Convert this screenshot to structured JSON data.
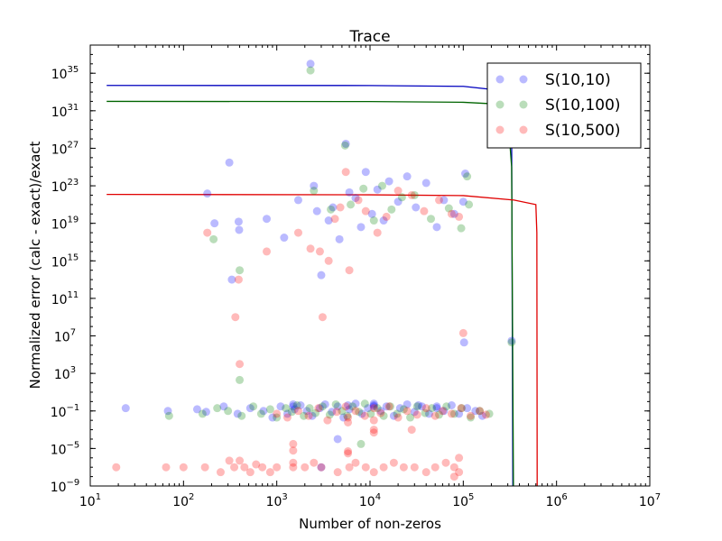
{
  "chart_data": {
    "type": "scatter",
    "title": "Trace",
    "xlabel": "Number of non-zeros",
    "ylabel": "Normalized error (calc - exact)/exact",
    "xscale": "log",
    "yscale": "log",
    "xlim": [
      10,
      10000000
    ],
    "ylim": [
      1e-09,
      1e+38
    ],
    "x_ticks": [
      {
        "value": 10,
        "base": "10",
        "exp": "1"
      },
      {
        "value": 100,
        "base": "10",
        "exp": "2"
      },
      {
        "value": 1000,
        "base": "10",
        "exp": "3"
      },
      {
        "value": 10000,
        "base": "10",
        "exp": "4"
      },
      {
        "value": 100000,
        "base": "10",
        "exp": "5"
      },
      {
        "value": 1000000,
        "base": "10",
        "exp": "6"
      },
      {
        "value": 10000000,
        "base": "10",
        "exp": "7"
      }
    ],
    "y_ticks": [
      {
        "value": 1e-09,
        "base": "10",
        "exp": "−9"
      },
      {
        "value": 1e-05,
        "base": "10",
        "exp": "−5"
      },
      {
        "value": 0.1,
        "base": "10",
        "exp": "−1"
      },
      {
        "value": 1000.0,
        "base": "10",
        "exp": "3"
      },
      {
        "value": 10000000.0,
        "base": "10",
        "exp": "7"
      },
      {
        "value": 100000000000.0,
        "base": "10",
        "exp": "11"
      },
      {
        "value": 1000000000000000.0,
        "base": "10",
        "exp": "15"
      },
      {
        "value": 1e+19,
        "base": "10",
        "exp": "19"
      },
      {
        "value": 1e+23,
        "base": "10",
        "exp": "23"
      },
      {
        "value": 1e+27,
        "base": "10",
        "exp": "27"
      },
      {
        "value": 1e+31,
        "base": "10",
        "exp": "31"
      },
      {
        "value": 1e+35,
        "base": "10",
        "exp": "35"
      }
    ],
    "legend_position": "top-right",
    "series": [
      {
        "name": "S(10,10)",
        "color": "#0000ff",
        "marker": "circle",
        "points": [
          [
            24,
            0.2
          ],
          [
            68,
            0.1
          ],
          [
            140,
            0.15
          ],
          [
            175,
            0.08
          ],
          [
            270,
            0.3
          ],
          [
            380,
            0.05
          ],
          [
            520,
            0.2
          ],
          [
            720,
            0.1
          ],
          [
            900,
            0.02
          ],
          [
            1100,
            0.3
          ],
          [
            1300,
            0.05
          ],
          [
            1550,
            0.15
          ],
          [
            1800,
            0.4
          ],
          [
            2100,
            0.1
          ],
          [
            2400,
            0.03
          ],
          [
            2900,
            0.2
          ],
          [
            3300,
            0.5
          ],
          [
            3900,
            0.08
          ],
          [
            4500,
            0.3
          ],
          [
            5200,
            0.02
          ],
          [
            6000,
            0.15
          ],
          [
            7000,
            0.6
          ],
          [
            8200,
            0.05
          ],
          [
            9500,
            0.2
          ],
          [
            11000,
            0.4
          ],
          [
            13000,
            0.1
          ],
          [
            15000,
            0.3
          ],
          [
            18000,
            0.03
          ],
          [
            21000,
            0.2
          ],
          [
            25000,
            0.5
          ],
          [
            30000,
            0.08
          ],
          [
            36000,
            0.3
          ],
          [
            43000,
            0.05
          ],
          [
            52000,
            0.2
          ],
          [
            62000,
            0.1
          ],
          [
            75000,
            0.4
          ],
          [
            90000,
            0.05
          ],
          [
            110000,
            0.2
          ],
          [
            135000,
            0.1
          ],
          [
            160000,
            0.03
          ],
          [
            1500,
            0.5
          ],
          [
            1500,
            0.3
          ],
          [
            5800,
            0.4
          ],
          [
            11000,
            0.6
          ],
          [
            11000,
            0.3
          ],
          [
            33000,
            0.4
          ],
          [
            52000,
            0.3
          ],
          [
            180,
            1.5e+22
          ],
          [
            215,
            1e+19
          ],
          [
            310,
            3e+25
          ],
          [
            330,
            10000000000000.0
          ],
          [
            390,
            1.5e+19
          ],
          [
            395,
            2e+18
          ],
          [
            780,
            3e+19
          ],
          [
            1200,
            3e+17
          ],
          [
            1700,
            3e+21
          ],
          [
            2300,
            1e+36
          ],
          [
            2500,
            1e+23
          ],
          [
            2700,
            2e+20
          ],
          [
            3000,
            30000000000000.0
          ],
          [
            3600,
            2e+19
          ],
          [
            4000,
            5e+20
          ],
          [
            4700,
            2e+17
          ],
          [
            5500,
            3e+27
          ],
          [
            6000,
            2e+22
          ],
          [
            7000,
            5e+21
          ],
          [
            8000,
            4e+18
          ],
          [
            9000,
            3e+24
          ],
          [
            10500,
            1e+20
          ],
          [
            12000,
            4e+22
          ],
          [
            14000,
            2e+19
          ],
          [
            16000,
            3e+23
          ],
          [
            20000,
            2e+21
          ],
          [
            25000,
            1e+24
          ],
          [
            31000,
            5e+20
          ],
          [
            40000,
            2e+23
          ],
          [
            52000,
            4e+18
          ],
          [
            62000,
            3e+21
          ],
          [
            80000,
            1e+20
          ],
          [
            100000,
            2e+21
          ],
          [
            105000,
            2e+24
          ],
          [
            102000,
            2000000.0
          ],
          [
            330000,
            3000000.0
          ],
          [
            4500,
            0.0001
          ],
          [
            3000,
            1e-07
          ]
        ]
      },
      {
        "name": "S(10,100)",
        "color": "#008000",
        "marker": "circle",
        "points": [
          [
            70,
            0.03
          ],
          [
            160,
            0.05
          ],
          [
            230,
            0.2
          ],
          [
            300,
            0.1
          ],
          [
            420,
            0.03
          ],
          [
            560,
            0.3
          ],
          [
            680,
            0.05
          ],
          [
            850,
            0.15
          ],
          [
            1000,
            0.02
          ],
          [
            1250,
            0.2
          ],
          [
            1450,
            0.08
          ],
          [
            1650,
            0.4
          ],
          [
            1950,
            0.03
          ],
          [
            2250,
            0.2
          ],
          [
            2600,
            0.06
          ],
          [
            3100,
            0.3
          ],
          [
            3700,
            0.04
          ],
          [
            4300,
            0.5
          ],
          [
            5000,
            0.1
          ],
          [
            5700,
            0.03
          ],
          [
            6500,
            0.3
          ],
          [
            7600,
            0.08
          ],
          [
            8800,
            0.6
          ],
          [
            10200,
            0.05
          ],
          [
            12000,
            0.2
          ],
          [
            14000,
            0.03
          ],
          [
            16500,
            0.3
          ],
          [
            19500,
            0.05
          ],
          [
            23000,
            0.15
          ],
          [
            27000,
            0.02
          ],
          [
            32000,
            0.3
          ],
          [
            39000,
            0.06
          ],
          [
            46000,
            0.2
          ],
          [
            55000,
            0.04
          ],
          [
            66000,
            0.3
          ],
          [
            80000,
            0.05
          ],
          [
            96000,
            0.2
          ],
          [
            120000,
            0.02
          ],
          [
            150000,
            0.1
          ],
          [
            190000,
            0.05
          ],
          [
            210,
            2e+17
          ],
          [
            400,
            100000000000000.0
          ],
          [
            2300,
            2e+35
          ],
          [
            2500,
            3e+22
          ],
          [
            3800,
            3e+20
          ],
          [
            5400,
            2e+27
          ],
          [
            6200,
            1e+21
          ],
          [
            8500,
            5e+22
          ],
          [
            11000,
            2e+19
          ],
          [
            13500,
            1e+23
          ],
          [
            17000,
            3e+20
          ],
          [
            22000,
            6e+21
          ],
          [
            30000,
            1e+22
          ],
          [
            45000,
            3e+19
          ],
          [
            70000,
            4e+20
          ],
          [
            95000,
            3e+18
          ],
          [
            110000,
            1e+24
          ],
          [
            115000,
            1e+21
          ],
          [
            330000,
            2000000.0
          ],
          [
            400,
            200.0
          ],
          [
            8000,
            3e-05
          ]
        ]
      },
      {
        "name": "S(10,500)",
        "color": "#ff0000",
        "marker": "circle",
        "points": [
          [
            19,
            1e-07
          ],
          [
            65,
            1e-07
          ],
          [
            100,
            1e-07
          ],
          [
            170,
            1e-07
          ],
          [
            250,
            3e-08
          ],
          [
            310,
            5e-07
          ],
          [
            350,
            1e-07
          ],
          [
            400,
            5e-07
          ],
          [
            450,
            1e-07
          ],
          [
            520,
            3e-08
          ],
          [
            600,
            2e-07
          ],
          [
            700,
            1e-07
          ],
          [
            850,
            3e-08
          ],
          [
            1000,
            1e-07
          ],
          [
            1500,
            1e-07
          ],
          [
            1500,
            3e-07
          ],
          [
            2000,
            1e-07
          ],
          [
            2500,
            3e-07
          ],
          [
            3000,
            1e-07
          ],
          [
            4500,
            3e-08
          ],
          [
            6000,
            1e-07
          ],
          [
            7000,
            3e-07
          ],
          [
            9000,
            1e-07
          ],
          [
            11000,
            3e-08
          ],
          [
            14000,
            1e-07
          ],
          [
            18000,
            3e-07
          ],
          [
            23000,
            1e-07
          ],
          [
            30000,
            1e-07
          ],
          [
            40000,
            3e-08
          ],
          [
            50000,
            1e-07
          ],
          [
            65000,
            3e-07
          ],
          [
            80000,
            1e-07
          ],
          [
            90000,
            3e-08
          ],
          [
            1500,
            3e-05
          ],
          [
            1500,
            6e-06
          ],
          [
            5800,
            3e-06
          ],
          [
            5800,
            5e-06
          ],
          [
            11000,
            0.001
          ],
          [
            11000,
            0.0005
          ],
          [
            1000,
            0.05
          ],
          [
            1300,
            0.02
          ],
          [
            1700,
            0.1
          ],
          [
            2200,
            0.03
          ],
          [
            2800,
            0.2
          ],
          [
            3500,
            0.01
          ],
          [
            4400,
            0.08
          ],
          [
            5500,
            0.3
          ],
          [
            5800,
            0.02
          ],
          [
            5800,
            0.006
          ],
          [
            7000,
            0.1
          ],
          [
            8800,
            0.03
          ],
          [
            11000,
            0.2
          ],
          [
            11000,
            0.01
          ],
          [
            13000,
            0.06
          ],
          [
            16000,
            0.3
          ],
          [
            20000,
            0.02
          ],
          [
            25000,
            0.1
          ],
          [
            32000,
            0.04
          ],
          [
            40000,
            0.2
          ],
          [
            50000,
            0.03
          ],
          [
            60000,
            0.1
          ],
          [
            75000,
            0.05
          ],
          [
            95000,
            0.2
          ],
          [
            120000,
            0.03
          ],
          [
            150000,
            0.1
          ],
          [
            175000,
            0.04
          ],
          [
            180,
            1e+18
          ],
          [
            390,
            10000000000000.0
          ],
          [
            360,
            1000000000.0
          ],
          [
            780,
            1e+16
          ],
          [
            1700,
            1e+18
          ],
          [
            2300,
            2e+16
          ],
          [
            2900,
            1e+16
          ],
          [
            3100,
            1000000000.0
          ],
          [
            3600,
            1000000000000000.0
          ],
          [
            4200,
            3e+19
          ],
          [
            4800,
            5e+20
          ],
          [
            5500,
            3e+24
          ],
          [
            6000,
            100000000000000.0
          ],
          [
            7500,
            3e+21
          ],
          [
            9000,
            2e+20
          ],
          [
            12000,
            1e+18
          ],
          [
            15000,
            5e+19
          ],
          [
            20000,
            3e+22
          ],
          [
            28000,
            1e+22
          ],
          [
            38000,
            2e+20
          ],
          [
            55000,
            3e+21
          ],
          [
            75000,
            1e+20
          ],
          [
            90000,
            5e+19
          ],
          [
            100000,
            20000000.0
          ],
          [
            400,
            10000.0
          ],
          [
            80000,
            1e-08
          ],
          [
            90000,
            1e-06
          ],
          [
            28000,
            0.001
          ]
        ]
      }
    ],
    "lines": [
      {
        "series": "S(10,10)",
        "color": "#0000bf",
        "points": [
          [
            15,
            5e+33
          ],
          [
            10000,
            4.9e+33
          ],
          [
            100000,
            4e+33
          ],
          [
            250000,
            1.5e+33
          ],
          [
            330000,
            1e+28
          ],
          [
            340000,
            1e-09
          ]
        ]
      },
      {
        "series": "S(10,100)",
        "color": "#006400",
        "points": [
          [
            15,
            1e+32
          ],
          [
            10000,
            9.5e+31
          ],
          [
            100000,
            8e+31
          ],
          [
            250000,
            5e+31
          ],
          [
            300000,
            3e+30
          ],
          [
            330000,
            1e+25
          ],
          [
            345000,
            1e-09
          ]
        ]
      },
      {
        "series": "S(10,500)",
        "color": "#e00000",
        "points": [
          [
            15,
            1.2e+22
          ],
          [
            10000,
            1.1e+22
          ],
          [
            100000,
            9e+21
          ],
          [
            350000,
            3e+21
          ],
          [
            600000,
            1e+21
          ],
          [
            615000,
            1e+18
          ],
          [
            620000,
            1e-09
          ]
        ]
      }
    ]
  }
}
